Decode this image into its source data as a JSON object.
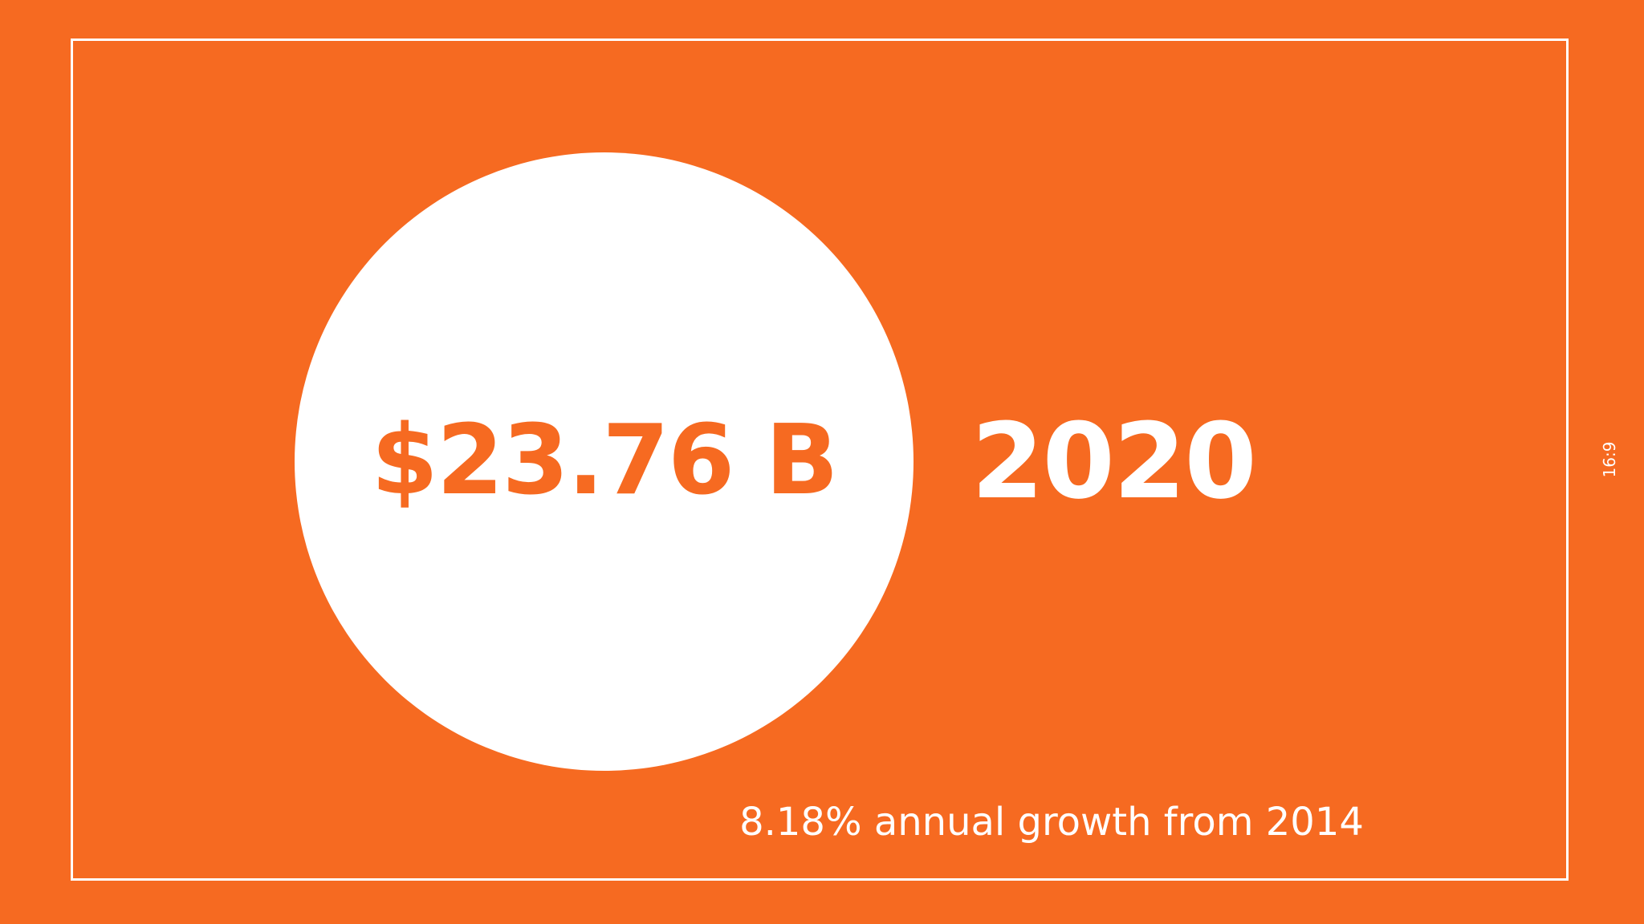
{
  "slide": {
    "amount": "$23.76 B",
    "year": "2020",
    "growth_text": "8.18% annual growth from 2014",
    "aspect_ratio_label": "16:9"
  },
  "colors": {
    "background": "#f66a21",
    "accent": "#ffffff"
  }
}
